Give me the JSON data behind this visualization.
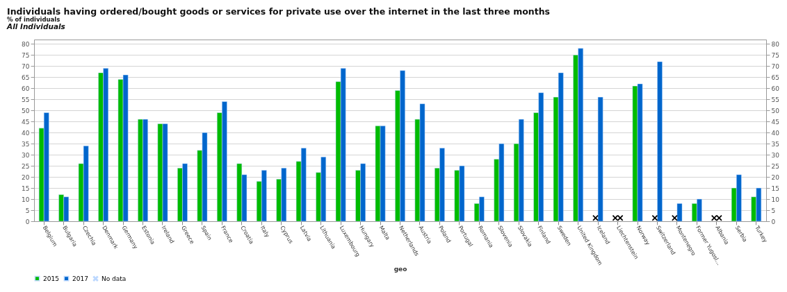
{
  "chart_data": {
    "type": "bar",
    "title": "Individuals having ordered/bought goods or services for private use over the internet in the last three months",
    "subtitle": "% of individuals",
    "annotations": [
      "All Individuals"
    ],
    "xlabel": "geo",
    "categories": [
      "Belgium",
      "Bulgaria",
      "Czechia",
      "Denmark",
      "Germany",
      "Estonia",
      "Ireland",
      "Greece",
      "Spain",
      "France",
      "Croatia",
      "Italy",
      "Cyprus",
      "Latvia",
      "Lithuania",
      "Luxembourg",
      "Hungary",
      "Malta",
      "Netherlands",
      "Austria",
      "Poland",
      "Portugal",
      "Romania",
      "Slovenia",
      "Slovakia",
      "Finland",
      "Sweden",
      "United Kingdom",
      "Iceland",
      "Liechtenstein",
      "Norway",
      "Switzerland",
      "Montenegro",
      "Former Yugosl...",
      "Albania",
      "Serbia",
      "Turkey"
    ],
    "series": [
      {
        "name": "2015",
        "color": "#00bb00",
        "values": [
          42,
          12,
          26,
          67,
          64,
          46,
          44,
          24,
          32,
          49,
          26,
          18,
          19,
          27,
          22,
          63,
          23,
          43,
          59,
          46,
          24,
          23,
          8,
          28,
          35,
          49,
          56,
          75,
          null,
          null,
          61,
          null,
          null,
          8,
          null,
          15,
          11
        ]
      },
      {
        "name": "2017",
        "color": "#0066cc",
        "values": [
          49,
          11,
          34,
          69,
          66,
          46,
          44,
          26,
          40,
          54,
          21,
          23,
          24,
          33,
          29,
          69,
          26,
          43,
          68,
          53,
          33,
          25,
          11,
          35,
          46,
          58,
          67,
          78,
          56,
          null,
          62,
          72,
          8,
          10,
          null,
          21,
          15
        ]
      },
      {
        "name": "No data",
        "type": "scatter",
        "marker": "cross",
        "color": "#000000",
        "x": [
          "Iceland",
          "Liechtenstein",
          "Liechtenstein",
          "Switzerland",
          "Montenegro",
          "Albania",
          "Albania"
        ],
        "values": [
          1.5,
          1.5,
          1.5,
          1.5,
          1.5,
          1.5,
          1.5
        ]
      }
    ],
    "ylim": [
      0,
      82
    ],
    "yticks": [
      0,
      5,
      10,
      15,
      20,
      25,
      30,
      35,
      40,
      45,
      50,
      55,
      60,
      65,
      70,
      75,
      80
    ],
    "y2lim": [
      0,
      82
    ],
    "y2ticks": [
      0,
      5,
      10,
      15,
      20,
      25,
      30,
      35,
      40,
      45,
      50,
      55,
      60,
      65,
      70,
      75,
      80
    ],
    "grid": "y",
    "legend": "bottom"
  }
}
